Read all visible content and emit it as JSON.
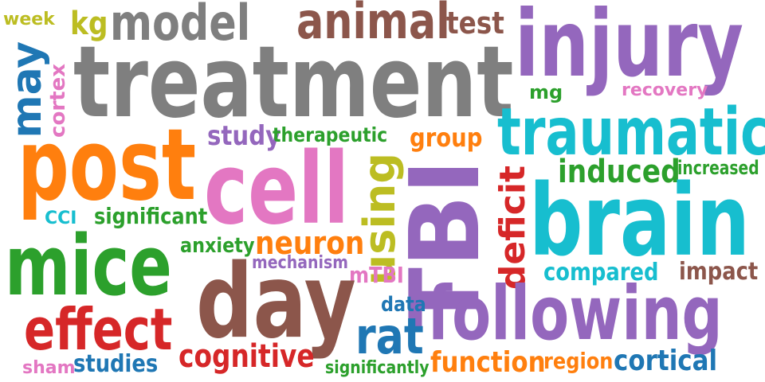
{
  "palette": {
    "gray": "#7f7f7f",
    "purple": "#9467bd",
    "brown": "#8c564b",
    "orange": "#ff7f0e",
    "green": "#2ca02c",
    "cyan": "#17becf",
    "pink": "#e377c2",
    "red": "#d62728",
    "blue": "#1f77b4",
    "olive": "#bcbd22"
  },
  "words": {
    "treatment": "treatment",
    "injury": "injury",
    "cell": "cell",
    "TBI": "TBI",
    "brain": "brain",
    "day": "day",
    "following": "following",
    "post": "post",
    "mice": "mice",
    "traumatic": "traumatic",
    "animal": "animal",
    "model": "model",
    "effect": "effect",
    "may": "may",
    "rat": "rat",
    "cognitive": "cognitive",
    "using": "using",
    "neuron": "neuron",
    "induced": "induced",
    "deficit": "deficit",
    "function": "function",
    "cortical": "cortical",
    "test": "test",
    "kg": "kg",
    "group": "group",
    "study": "study",
    "compared": "compared",
    "impact": "impact",
    "studies": "studies",
    "region": "region",
    "mTBI": "mTBI",
    "significant": "significant",
    "therapeutic": "therapeutic",
    "increased": "increased",
    "anxiety": "anxiety",
    "mechanism": "mechanism",
    "cortex": "cortex",
    "recovery": "recovery",
    "data": "data",
    "significantly": "significantly",
    "sham": "sham",
    "week": "week",
    "mg": "mg",
    "CCI": "CCI"
  }
}
